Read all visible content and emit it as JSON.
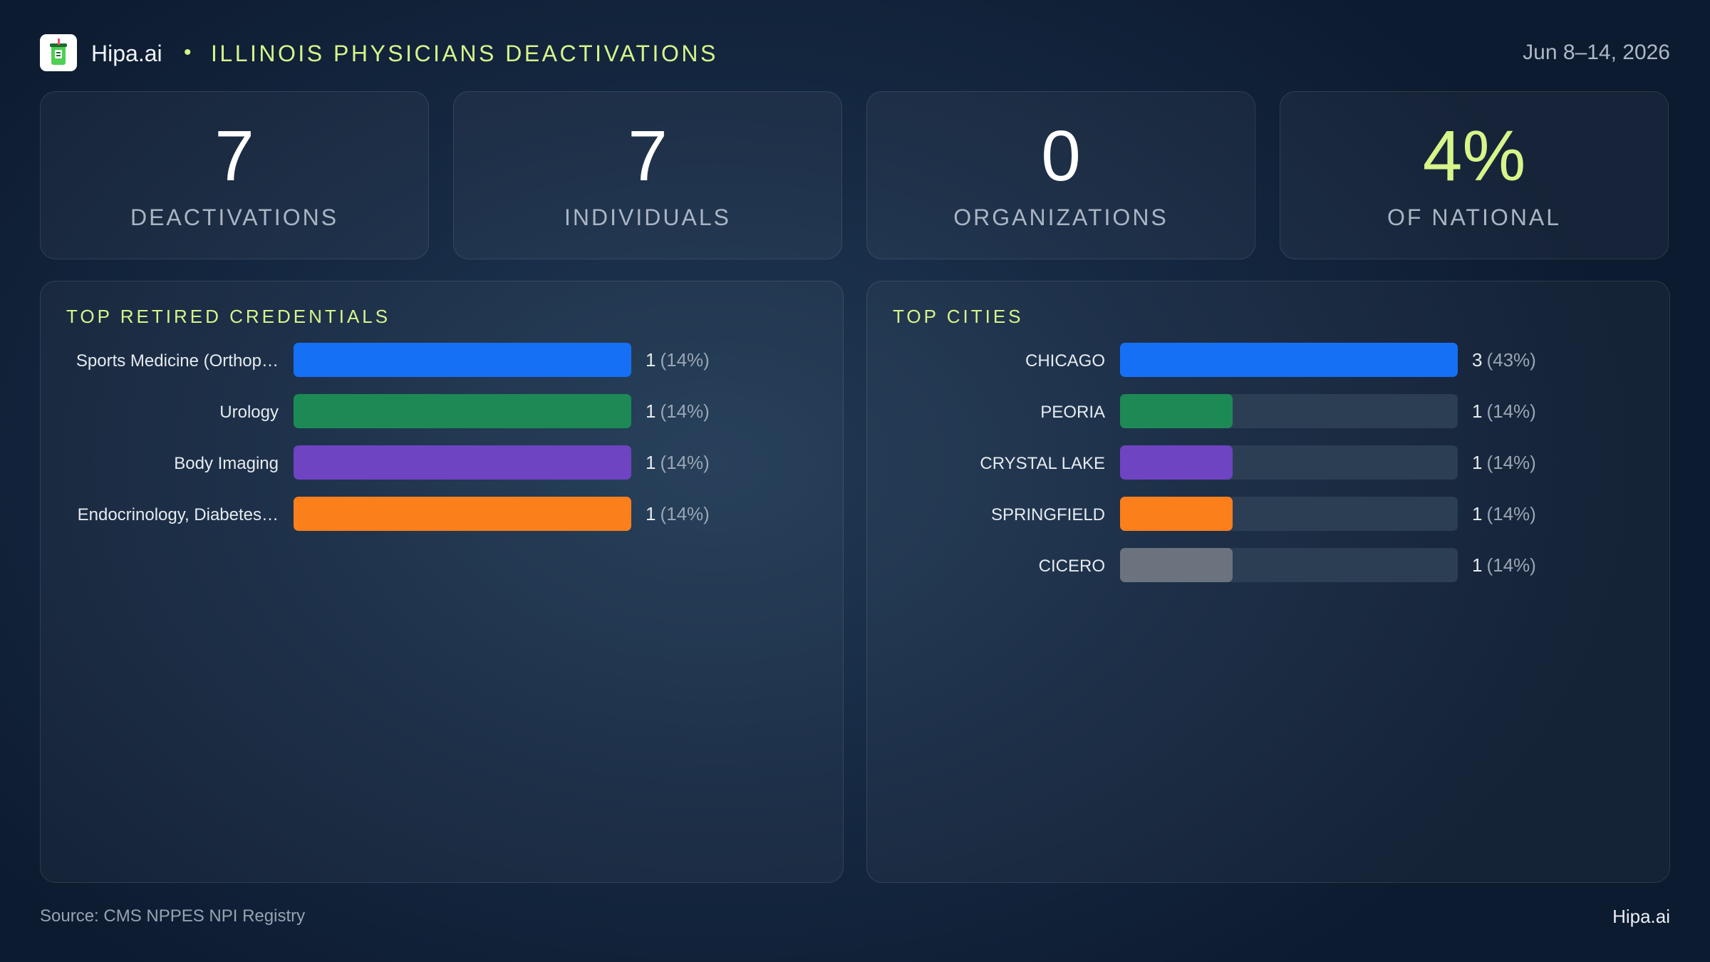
{
  "header": {
    "brand": "Hipa.ai",
    "separator": "•",
    "title": "ILLINOIS PHYSICIANS DEACTIVATIONS",
    "date_range": "Jun 8–14, 2026",
    "logo_icon": "cup-icon"
  },
  "kpis": [
    {
      "value": "7",
      "label": "DEACTIVATIONS"
    },
    {
      "value": "7",
      "label": "INDIVIDUALS"
    },
    {
      "value": "0",
      "label": "ORGANIZATIONS"
    },
    {
      "value": "4%",
      "label": "OF NATIONAL",
      "accent": "#d7f58a"
    }
  ],
  "chart_data": [
    {
      "type": "bar",
      "orientation": "horizontal",
      "title": "TOP RETIRED CREDENTIALS",
      "categories": [
        "Sports Medicine (Orthop…",
        "Urology",
        "Body Imaging",
        "Endocrinology, Diabetes…"
      ],
      "values": [
        1,
        1,
        1,
        1
      ],
      "value_labels": [
        "1",
        "1",
        "1",
        "1"
      ],
      "percent_labels": [
        "(14%)",
        "(14%)",
        "(14%)",
        "(14%)"
      ],
      "xlim": [
        0,
        1
      ],
      "colors": [
        "#1570f5",
        "#1d8a56",
        "#6e44c2",
        "#fb7f1b"
      ]
    },
    {
      "type": "bar",
      "orientation": "horizontal",
      "title": "TOP CITIES",
      "categories": [
        "CHICAGO",
        "PEORIA",
        "CRYSTAL  LAKE",
        "SPRINGFIELD",
        "CICERO"
      ],
      "values": [
        3,
        1,
        1,
        1,
        1
      ],
      "value_labels": [
        "3",
        "1",
        "1",
        "1",
        "1"
      ],
      "percent_labels": [
        "(43%)",
        "(14%)",
        "(14%)",
        "(14%)",
        "(14%)"
      ],
      "xlim": [
        0,
        3
      ],
      "colors": [
        "#1570f5",
        "#1d8a56",
        "#6e44c2",
        "#fb7f1b",
        "#6b737e"
      ],
      "track_color": "#2c3e54"
    }
  ],
  "footer": {
    "source": "Source: CMS NPPES NPI Registry",
    "brand": "Hipa.ai"
  }
}
